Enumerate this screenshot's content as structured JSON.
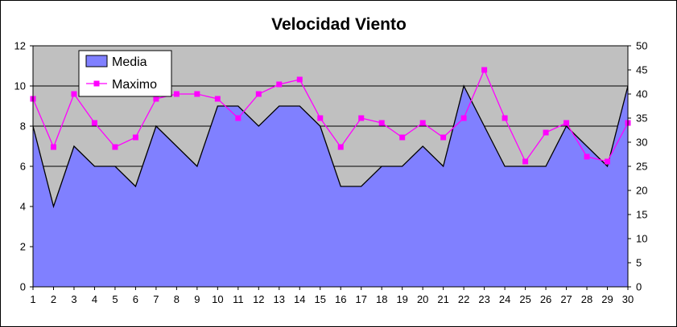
{
  "chart_data": {
    "type": "area",
    "title": "Velocidad Viento",
    "x": [
      1,
      2,
      3,
      4,
      5,
      6,
      7,
      8,
      9,
      10,
      11,
      12,
      13,
      14,
      15,
      16,
      17,
      18,
      19,
      20,
      21,
      22,
      23,
      24,
      25,
      26,
      27,
      28,
      29,
      30
    ],
    "series": [
      {
        "name": "Media",
        "type": "area",
        "axis": "left",
        "color": "#8080ff",
        "values": [
          8,
          4,
          7,
          6,
          6,
          5,
          8,
          7,
          6,
          9,
          9,
          8,
          9,
          9,
          8,
          5,
          5,
          6,
          6,
          7,
          6,
          10,
          8,
          6,
          6,
          6,
          8,
          7,
          6,
          10
        ]
      },
      {
        "name": "Maximo",
        "type": "line",
        "axis": "right",
        "color": "#ff00ff",
        "marker": "square",
        "values": [
          39,
          29,
          40,
          34,
          29,
          31,
          39,
          40,
          40,
          39,
          35,
          40,
          42,
          43,
          35,
          29,
          35,
          34,
          31,
          34,
          31,
          35,
          45,
          35,
          26,
          32,
          34,
          27,
          26,
          34
        ]
      }
    ],
    "y_left": {
      "lim": [
        0,
        12
      ],
      "ticks": [
        0,
        2,
        4,
        6,
        8,
        10,
        12
      ]
    },
    "y_right": {
      "lim": [
        0,
        50
      ],
      "ticks": [
        0,
        5,
        10,
        15,
        20,
        25,
        30,
        35,
        40,
        45,
        50
      ]
    },
    "plot_background": "#c0c0c0",
    "grid": "horizontal",
    "legend_position": "top-left"
  }
}
